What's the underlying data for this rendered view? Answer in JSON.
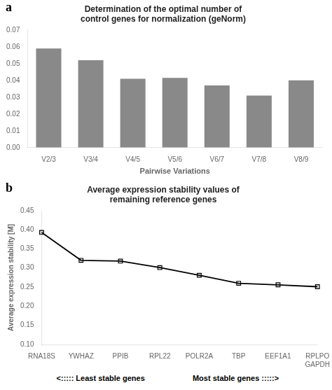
{
  "chart_data": [
    {
      "type": "bar",
      "title": "Determination of the optimal number of\ncontrol genes for normalization (geNorm)",
      "annotations": [
        "a"
      ],
      "categories": [
        "V2/3",
        "V3/4",
        "V4/5",
        "V5/6",
        "V6/7",
        "V7/8",
        "V8/9"
      ],
      "values": [
        0.059,
        0.052,
        0.041,
        0.0415,
        0.037,
        0.031,
        0.04
      ],
      "color": "#898989",
      "xlabel": "Pairwise Variations",
      "ylim": [
        0,
        0.07
      ],
      "yticks": [
        {
          "value": 0.0,
          "label": "0.00"
        },
        0.01,
        0.02,
        0.03,
        0.04,
        0.05,
        0.06,
        0.07
      ],
      "grid": false
    },
    {
      "type": "line",
      "title": "Average expression stability values of\nremaining reference genes",
      "annotations": [
        "b",
        "<::::: Least stable genes",
        "Most stable genes :::::>"
      ],
      "categories": [
        "RNA18S",
        "YWHAZ",
        "PPIB",
        "RPL22",
        "POLR2A",
        "TBP",
        "EEF1A1",
        "RPLPO\nGAPDH"
      ],
      "values": [
        0.393,
        0.32,
        0.318,
        0.301,
        0.281,
        0.26,
        0.256,
        0.251
      ],
      "color": "#000000",
      "marker": "square",
      "ylabel": "Average expression stability [M]",
      "ylim": [
        0.1,
        0.45
      ],
      "yticks": [
        {
          "value": 0.1,
          "label": "0.10"
        },
        0.15,
        {
          "value": 0.2,
          "label": "0.20"
        },
        0.25,
        {
          "value": 0.3,
          "label": "0.30"
        },
        0.35,
        {
          "value": 0.4,
          "label": "0.40"
        },
        0.45
      ],
      "grid": false
    }
  ]
}
